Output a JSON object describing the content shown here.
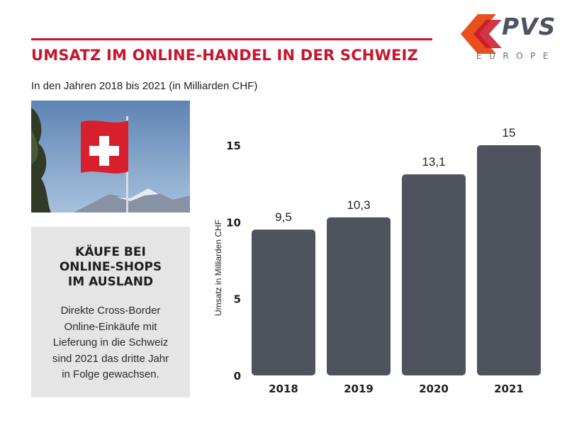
{
  "header": {
    "title": "UMSATZ IM ONLINE-HANDEL IN DER SCHWEIZ",
    "subtitle": "In den Jahren 2018 bis 2021 (in Milliarden CHF)"
  },
  "logo": {
    "word": "PVS",
    "sub": "EUROPE"
  },
  "photo": {
    "subject": "swiss-flag-photo"
  },
  "info_box": {
    "heading_lines": [
      "KÄUFE BEI",
      "ONLINE-SHOPS",
      "IM AUSLAND"
    ],
    "text_lines": [
      "Direkte Cross-Border",
      "Online-Einkäufe mit",
      "Lieferung in die Schweiz",
      "sind 2021 das dritte Jahr",
      "in Folge gewachsen."
    ]
  },
  "colors": {
    "accent": "#c8142c",
    "bar": "#4f535e",
    "info_bg": "#e5e5e5",
    "logo_orange": "#e8501e"
  },
  "chart_data": {
    "type": "bar",
    "categories": [
      "2018",
      "2019",
      "2020",
      "2021"
    ],
    "values": [
      9.5,
      10.3,
      13.1,
      15
    ],
    "value_labels": [
      "9,5",
      "10,3",
      "13,1",
      "15"
    ],
    "ylabel": "Umsatz in Milliarden CHF",
    "ylim": [
      0,
      15
    ],
    "yticks": [
      0,
      5,
      10,
      15
    ],
    "grid": false
  }
}
